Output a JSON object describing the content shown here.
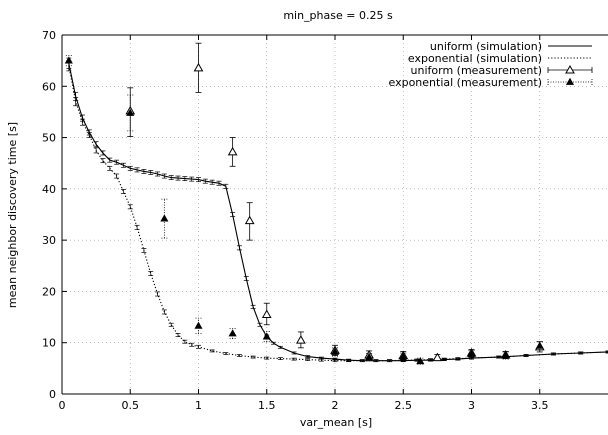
{
  "chart_data": {
    "type": "line",
    "title": "min_phase = 0.25 s",
    "xlabel": "var_mean [s]",
    "ylabel": "mean neighbor discovery time [s]",
    "xlim": [
      0,
      4
    ],
    "ylim": [
      0,
      70
    ],
    "x_ticks": [
      0,
      0.5,
      1,
      1.5,
      2,
      2.5,
      3,
      3.5
    ],
    "x_tick_labels": [
      "0",
      "0.5",
      "1",
      "1.5",
      "2",
      "2.5",
      "3",
      "3.5"
    ],
    "y_ticks": [
      0,
      10,
      20,
      30,
      40,
      50,
      60,
      70
    ],
    "y_tick_labels": [
      "0",
      "10",
      "20",
      "30",
      "40",
      "50",
      "60",
      "70"
    ],
    "grid": true,
    "legend_position": "top-right",
    "series": [
      {
        "name": "uniform (simulation)",
        "style": "solid",
        "marker": "none",
        "color": "#000000",
        "x": [
          0.05,
          0.1,
          0.15,
          0.2,
          0.25,
          0.3,
          0.35,
          0.4,
          0.45,
          0.5,
          0.55,
          0.6,
          0.65,
          0.7,
          0.75,
          0.8,
          0.85,
          0.9,
          0.95,
          1.0,
          1.05,
          1.1,
          1.15,
          1.2,
          1.25,
          1.3,
          1.35,
          1.4,
          1.45,
          1.5,
          1.55,
          1.6,
          1.7,
          1.8,
          1.9,
          2.0,
          2.1,
          2.2,
          2.3,
          2.4,
          2.5,
          2.6,
          2.7,
          2.8,
          2.9,
          3.0,
          3.2,
          3.4,
          3.6,
          3.8,
          4.0
        ],
        "y": [
          64.5,
          58.0,
          53.8,
          51.0,
          48.7,
          47.0,
          45.6,
          45.2,
          44.6,
          44.0,
          43.7,
          43.4,
          43.2,
          42.9,
          42.5,
          42.2,
          42.1,
          42.0,
          41.9,
          41.8,
          41.5,
          41.3,
          41.1,
          40.5,
          35.0,
          28.5,
          22.5,
          17.0,
          13.5,
          11.2,
          9.9,
          9.1,
          8.0,
          7.3,
          7.0,
          6.8,
          6.6,
          6.5,
          6.5,
          6.5,
          6.5,
          6.6,
          6.6,
          6.7,
          6.8,
          7.0,
          7.2,
          7.5,
          7.8,
          8.0,
          8.2
        ],
        "err": [
          1.0,
          0.8,
          0.6,
          0.5,
          0.5,
          0.4,
          0.4,
          0.4,
          0.4,
          0.4,
          0.4,
          0.4,
          0.4,
          0.4,
          0.4,
          0.4,
          0.4,
          0.4,
          0.4,
          0.4,
          0.4,
          0.4,
          0.4,
          0.4,
          0.4,
          0.4,
          0.4,
          0.3,
          0.3,
          0.3,
          0.2,
          0.2,
          0.2,
          0.2,
          0.2,
          0.2,
          0.2,
          0.2,
          0.2,
          0.2,
          0.2,
          0.2,
          0.2,
          0.2,
          0.2,
          0.2,
          0.2,
          0.2,
          0.2,
          0.2,
          0.2
        ]
      },
      {
        "name": "exponential (simulation)",
        "style": "dotted",
        "marker": "none",
        "color": "#000000",
        "x": [
          0.05,
          0.1,
          0.15,
          0.2,
          0.25,
          0.3,
          0.35,
          0.4,
          0.45,
          0.5,
          0.55,
          0.6,
          0.65,
          0.7,
          0.75,
          0.8,
          0.85,
          0.9,
          0.95,
          1.0,
          1.1,
          1.2,
          1.3,
          1.4,
          1.5,
          1.6,
          1.7,
          1.8,
          1.9,
          2.0,
          2.1,
          2.2,
          2.3,
          2.4,
          2.5,
          2.6,
          2.7,
          2.8,
          2.9,
          3.0,
          3.2,
          3.4,
          3.6,
          3.8,
          4.0
        ],
        "y": [
          64.0,
          57.0,
          53.0,
          50.5,
          47.5,
          45.5,
          44.0,
          42.5,
          39.5,
          36.5,
          32.5,
          28.0,
          23.5,
          19.5,
          16.0,
          13.5,
          11.5,
          10.2,
          9.6,
          9.2,
          8.4,
          7.9,
          7.5,
          7.2,
          7.0,
          6.9,
          6.8,
          6.7,
          6.6,
          6.5,
          6.5,
          6.5,
          6.5,
          6.5,
          6.6,
          6.6,
          6.7,
          6.8,
          6.9,
          7.0,
          7.2,
          7.5,
          7.8,
          8.0,
          8.2
        ],
        "err": [
          1.0,
          0.8,
          0.6,
          0.5,
          0.5,
          0.4,
          0.4,
          0.4,
          0.4,
          0.4,
          0.4,
          0.4,
          0.4,
          0.4,
          0.4,
          0.3,
          0.3,
          0.3,
          0.3,
          0.3,
          0.2,
          0.2,
          0.2,
          0.2,
          0.2,
          0.2,
          0.2,
          0.2,
          0.2,
          0.2,
          0.2,
          0.2,
          0.2,
          0.2,
          0.2,
          0.2,
          0.2,
          0.2,
          0.2,
          0.2,
          0.2,
          0.2,
          0.2,
          0.2,
          0.2
        ]
      },
      {
        "name": "uniform (measurement)",
        "style": "points",
        "marker": "open-triangle",
        "color": "#000000",
        "x": [
          0.5,
          1.0,
          1.25,
          1.375,
          1.5,
          1.75,
          2.0,
          2.25,
          2.5,
          2.75,
          3.0,
          3.25,
          3.5
        ],
        "y": [
          55.2,
          63.6,
          47.2,
          33.8,
          15.5,
          10.5,
          8.5,
          7.6,
          7.5,
          7.1,
          8.0,
          7.6,
          9.2
        ],
        "err_low": [
          5.0,
          4.8,
          2.8,
          3.8,
          2.0,
          1.5,
          1.0,
          0.8,
          0.8,
          0.6,
          0.7,
          0.7,
          1.0
        ],
        "err_high": [
          4.5,
          4.8,
          2.8,
          3.5,
          2.2,
          1.6,
          1.0,
          0.8,
          0.8,
          0.6,
          0.7,
          0.7,
          1.0
        ]
      },
      {
        "name": "exponential (measurement)",
        "style": "points-dotted-errorbars",
        "marker": "filled-triangle",
        "color": "#000000",
        "x": [
          0.05,
          0.5,
          0.75,
          1.0,
          1.25,
          1.5,
          2.0,
          2.25,
          2.5,
          2.625,
          3.0,
          3.25,
          3.5
        ],
        "y": [
          65.0,
          54.8,
          34.2,
          13.3,
          11.8,
          11.2,
          8.2,
          7.2,
          7.3,
          6.4,
          7.8,
          7.5,
          9.4
        ],
        "err_low": [
          1.0,
          3.5,
          3.8,
          1.5,
          1.0,
          1.0,
          0.8,
          0.7,
          0.7,
          0.6,
          0.7,
          0.7,
          0.8
        ],
        "err_high": [
          1.0,
          3.5,
          3.8,
          1.5,
          1.0,
          1.0,
          0.8,
          0.7,
          0.7,
          0.6,
          0.7,
          0.7,
          0.8
        ]
      }
    ]
  }
}
